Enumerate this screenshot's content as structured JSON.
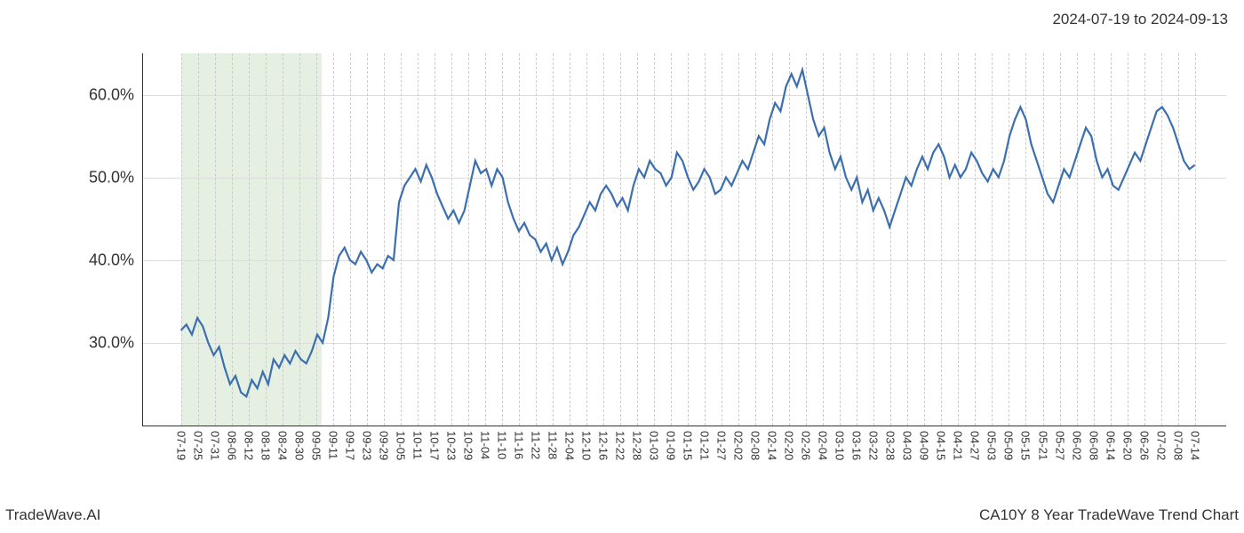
{
  "header": {
    "date_range": "2024-07-19 to 2024-09-13"
  },
  "footer": {
    "left": "TradeWave.AI",
    "right": "CA10Y 8 Year TradeWave Trend Chart"
  },
  "chart": {
    "type": "line",
    "background_color": "#ffffff",
    "axis_color": "#333333",
    "grid_v_color": "#cccccc",
    "grid_h_color": "#dddddd",
    "line_color": "#3b6fb0",
    "line_width": 2.2,
    "highlight_fill": "rgba(160,200,150,0.28)",
    "highlight_xstart": 0.035,
    "highlight_xend": 0.165,
    "ylim": [
      20,
      65
    ],
    "yticks": [
      {
        "v": 30,
        "label": "30.0%"
      },
      {
        "v": 40,
        "label": "40.0%"
      },
      {
        "v": 50,
        "label": "50.0%"
      },
      {
        "v": 60,
        "label": "60.0%"
      }
    ],
    "xticks": {
      "start_frac": 0.035,
      "step_frac": 0.0156,
      "labels": [
        "07-19",
        "07-25",
        "07-31",
        "08-06",
        "08-12",
        "08-18",
        "08-24",
        "08-30",
        "09-05",
        "09-11",
        "09-17",
        "09-23",
        "09-29",
        "10-05",
        "10-11",
        "10-17",
        "10-23",
        "10-29",
        "11-04",
        "11-10",
        "11-16",
        "11-22",
        "11-28",
        "12-04",
        "12-10",
        "12-16",
        "12-22",
        "12-28",
        "01-03",
        "01-09",
        "01-15",
        "01-21",
        "01-27",
        "02-02",
        "02-08",
        "02-14",
        "02-20",
        "02-26",
        "02-04",
        "03-10",
        "03-16",
        "03-22",
        "03-28",
        "04-03",
        "04-09",
        "04-15",
        "04-21",
        "04-27",
        "05-03",
        "05-09",
        "05-15",
        "05-21",
        "05-27",
        "06-02",
        "06-08",
        "06-14",
        "06-20",
        "06-26",
        "07-02",
        "07-08",
        "07-14"
      ]
    },
    "series": [
      31.5,
      32.2,
      31.0,
      33.0,
      32.0,
      30.0,
      28.5,
      29.5,
      27.0,
      25.0,
      26.0,
      24.0,
      23.5,
      25.5,
      24.5,
      26.5,
      25.0,
      28.0,
      27.0,
      28.5,
      27.5,
      29.0,
      28.0,
      27.5,
      29.0,
      31.0,
      30.0,
      33.0,
      38.0,
      40.5,
      41.5,
      40.0,
      39.5,
      41.0,
      40.0,
      38.5,
      39.5,
      39.0,
      40.5,
      40.0,
      47.0,
      49.0,
      50.0,
      51.0,
      49.5,
      51.5,
      50.0,
      48.0,
      46.5,
      45.0,
      46.0,
      44.5,
      46.0,
      49.0,
      52.0,
      50.5,
      51.0,
      49.0,
      51.0,
      50.0,
      47.0,
      45.0,
      43.5,
      44.5,
      43.0,
      42.5,
      41.0,
      42.0,
      40.0,
      41.5,
      39.5,
      41.0,
      43.0,
      44.0,
      45.5,
      47.0,
      46.0,
      48.0,
      49.0,
      48.0,
      46.5,
      47.5,
      46.0,
      49.0,
      51.0,
      50.0,
      52.0,
      51.0,
      50.5,
      49.0,
      50.0,
      53.0,
      52.0,
      50.0,
      48.5,
      49.5,
      51.0,
      50.0,
      48.0,
      48.5,
      50.0,
      49.0,
      50.5,
      52.0,
      51.0,
      53.0,
      55.0,
      54.0,
      57.0,
      59.0,
      58.0,
      61.0,
      62.5,
      61.0,
      63.0,
      60.0,
      57.0,
      55.0,
      56.0,
      53.0,
      51.0,
      52.5,
      50.0,
      48.5,
      50.0,
      47.0,
      48.5,
      46.0,
      47.5,
      46.0,
      44.0,
      46.0,
      48.0,
      50.0,
      49.0,
      51.0,
      52.5,
      51.0,
      53.0,
      54.0,
      52.5,
      50.0,
      51.5,
      50.0,
      51.0,
      53.0,
      52.0,
      50.5,
      49.5,
      51.0,
      50.0,
      52.0,
      55.0,
      57.0,
      58.5,
      57.0,
      54.0,
      52.0,
      50.0,
      48.0,
      47.0,
      49.0,
      51.0,
      50.0,
      52.0,
      54.0,
      56.0,
      55.0,
      52.0,
      50.0,
      51.0,
      49.0,
      48.5,
      50.0,
      51.5,
      53.0,
      52.0,
      54.0,
      56.0,
      58.0,
      58.5,
      57.5,
      56.0,
      54.0,
      52.0,
      51.0,
      51.5
    ],
    "label_fontsize": 13,
    "ytick_fontsize": 18,
    "footer_fontsize": 17,
    "header_fontsize": 17
  }
}
